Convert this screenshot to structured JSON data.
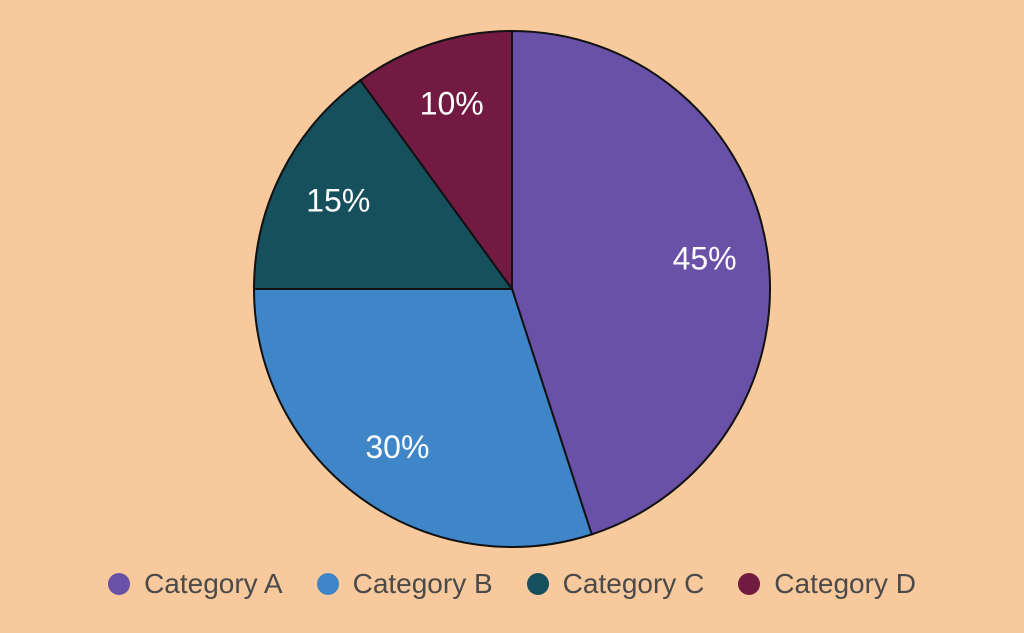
{
  "chart_data": {
    "type": "pie",
    "categories": [
      "Category A",
      "Category B",
      "Category C",
      "Category D"
    ],
    "values": [
      45,
      30,
      15,
      10
    ],
    "labels": [
      "45%",
      "30%",
      "15%",
      "10%"
    ],
    "colors": [
      "#6a51a8",
      "#3f86c8",
      "#15505c",
      "#731a43"
    ],
    "start_angle_deg": 0,
    "direction": "clockwise",
    "legend": {
      "position": "bottom",
      "items": [
        {
          "label": "Category A",
          "color": "#6a51a8"
        },
        {
          "label": "Category B",
          "color": "#3f86c8"
        },
        {
          "label": "Category C",
          "color": "#15505c"
        },
        {
          "label": "Category D",
          "color": "#731a43"
        }
      ]
    }
  },
  "background_color": "#f8c99c"
}
